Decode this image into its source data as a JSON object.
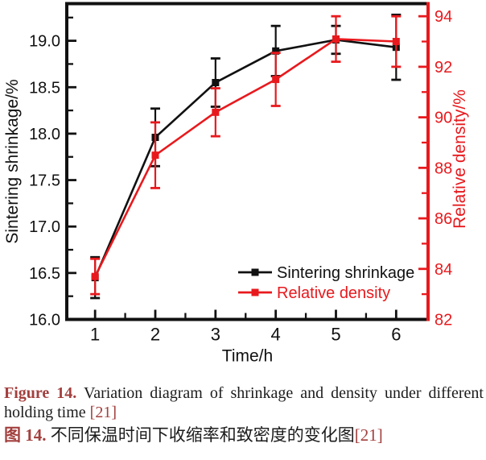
{
  "figure": {
    "caption": {
      "en_label": "Figure 14.",
      "en_text": " Variation diagram of shrinkage and density under different holding time ",
      "en_ref": "[21]",
      "cn_label": "图 14.",
      "cn_text": " 不同保温时间下收缩率和致密度的变化图",
      "cn_ref": "[21]",
      "accent_color": "#a2403e"
    }
  },
  "chart_data": {
    "type": "line",
    "x": [
      1,
      2,
      3,
      4,
      5,
      6
    ],
    "xlabel": "Time/h",
    "x_ticks": [
      1,
      2,
      3,
      4,
      5,
      6
    ],
    "x_minor_step": 0.5,
    "xlim": [
      0.53,
      6.53
    ],
    "left_axis": {
      "label": "Sintering shrinkage/%",
      "ticks": [
        16.0,
        16.5,
        17.0,
        17.5,
        18.0,
        18.5,
        19.0
      ],
      "minor_step": 0.25,
      "lim": [
        16.0,
        19.4
      ],
      "decimals": 1,
      "color": "#111111"
    },
    "right_axis": {
      "label": "Relative density/%",
      "ticks": [
        82,
        84,
        86,
        88,
        90,
        92,
        94
      ],
      "minor_step": 1,
      "lim": [
        82,
        94.5
      ],
      "decimals": 0,
      "color": "#e8191d"
    },
    "grid": false,
    "legend": {
      "position": "inside-bottom-right"
    },
    "series": [
      {
        "name": "Sintering shrinkage",
        "axis": "left",
        "color": "#111111",
        "marker": "square",
        "values": [
          16.45,
          17.96,
          18.55,
          18.89,
          19.01,
          18.93
        ],
        "errors": [
          0.22,
          0.31,
          0.26,
          0.27,
          0.15,
          0.35
        ]
      },
      {
        "name": "Relative density",
        "axis": "right",
        "color": "#e8191d",
        "marker": "square",
        "values": [
          83.7,
          88.5,
          90.2,
          91.5,
          93.1,
          93.0
        ],
        "errors": [
          0.7,
          1.3,
          0.95,
          1.05,
          0.9,
          1.0
        ]
      }
    ]
  }
}
